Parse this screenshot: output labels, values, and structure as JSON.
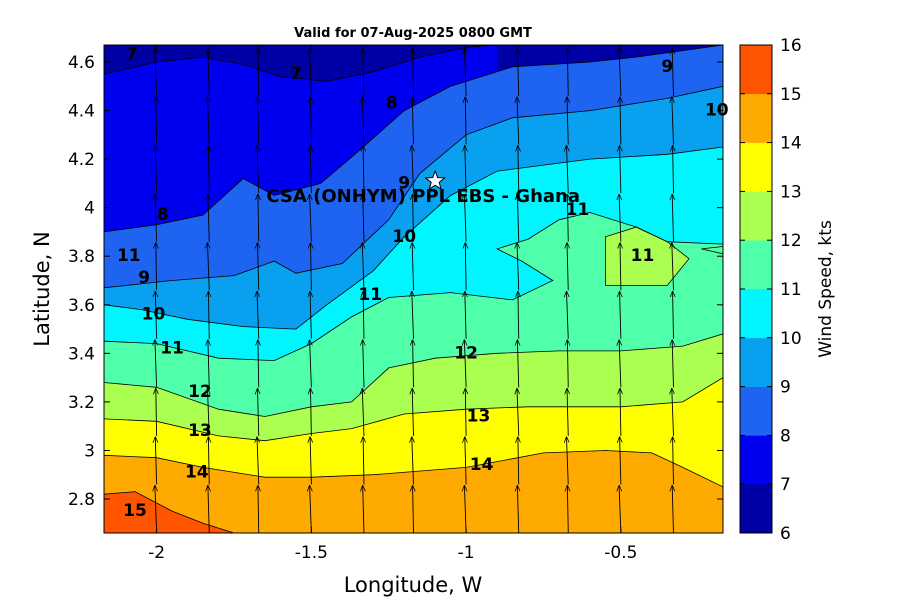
{
  "chart_data": {
    "type": "heatmap",
    "subtype": "filled-contour-with-wind-vectors",
    "title": "Valid for 07-Aug-2025 0800 GMT",
    "xlabel": "Longitude, W",
    "ylabel": "Latitude, N",
    "xlim": [
      -2.17,
      -0.17
    ],
    "ylim": [
      2.66,
      4.67
    ],
    "x_ticks": [
      -2,
      -1.5,
      -1,
      -0.5
    ],
    "x_tick_labels": [
      "-2",
      "-1.5",
      "-1",
      "-0.5"
    ],
    "y_ticks": [
      2.8,
      3.0,
      3.2,
      3.4,
      3.6,
      3.8,
      4.0,
      4.2,
      4.4,
      4.6
    ],
    "y_tick_labels": [
      "2.8",
      "3",
      "3.2",
      "3.4",
      "3.6",
      "3.8",
      "4",
      "4.2",
      "4.4",
      "4.6"
    ],
    "colorbar": {
      "label": "Wind Speed, kts",
      "levels": [
        6,
        7,
        8,
        9,
        10,
        11,
        12,
        13,
        14,
        15,
        16
      ],
      "tick_labels": [
        "6",
        "7",
        "8",
        "9",
        "10",
        "11",
        "12",
        "13",
        "14",
        "15",
        "16"
      ],
      "colors": [
        "#0000a5",
        "#0000f0",
        "#1e64f0",
        "#0aa0f0",
        "#00f5ff",
        "#50ffaa",
        "#aaff50",
        "#ffff00",
        "#ffaa00",
        "#ff5500"
      ]
    },
    "contour_levels": [
      7,
      8,
      9,
      10,
      11,
      12,
      13,
      14,
      15
    ],
    "contours": [
      {
        "level": 7,
        "points": [
          [
            -2.17,
            4.55
          ],
          [
            -2.0,
            4.6
          ],
          [
            -1.85,
            4.62
          ],
          [
            -1.72,
            4.59
          ],
          [
            -1.6,
            4.54
          ],
          [
            -1.45,
            4.52
          ],
          [
            -1.3,
            4.56
          ],
          [
            -1.15,
            4.62
          ],
          [
            -1.0,
            4.66
          ],
          [
            -0.9,
            4.67
          ]
        ]
      },
      {
        "level": 8,
        "points": [
          [
            -2.17,
            3.9
          ],
          [
            -2.0,
            3.93
          ],
          [
            -1.85,
            3.97
          ],
          [
            -1.72,
            4.12
          ],
          [
            -1.62,
            4.05
          ],
          [
            -1.47,
            4.1
          ],
          [
            -1.35,
            4.23
          ],
          [
            -1.2,
            4.4
          ],
          [
            -1.05,
            4.5
          ],
          [
            -0.85,
            4.58
          ],
          [
            -0.6,
            4.6
          ],
          [
            -0.45,
            4.62
          ],
          [
            -0.17,
            4.67
          ]
        ]
      },
      {
        "level": 9,
        "points": [
          [
            -2.17,
            3.67
          ],
          [
            -1.95,
            3.7
          ],
          [
            -1.75,
            3.72
          ],
          [
            -1.62,
            3.78
          ],
          [
            -1.55,
            3.73
          ],
          [
            -1.4,
            3.77
          ],
          [
            -1.25,
            3.95
          ],
          [
            -1.15,
            4.14
          ],
          [
            -1.0,
            4.3
          ],
          [
            -0.85,
            4.37
          ],
          [
            -0.6,
            4.4
          ],
          [
            -0.35,
            4.45
          ],
          [
            -0.17,
            4.5
          ]
        ]
      },
      {
        "level": 10,
        "points": [
          [
            -2.17,
            3.6
          ],
          [
            -2.05,
            3.58
          ],
          [
            -1.9,
            3.54
          ],
          [
            -1.72,
            3.51
          ],
          [
            -1.55,
            3.5
          ],
          [
            -1.45,
            3.6
          ],
          [
            -1.3,
            3.74
          ],
          [
            -1.2,
            3.88
          ],
          [
            -1.05,
            4.05
          ],
          [
            -0.9,
            4.15
          ],
          [
            -0.6,
            4.2
          ],
          [
            -0.35,
            4.22
          ],
          [
            -0.17,
            4.25
          ]
        ]
      },
      {
        "level": 11,
        "points": [
          [
            -2.17,
            3.45
          ],
          [
            -2.0,
            3.44
          ],
          [
            -1.8,
            3.38
          ],
          [
            -1.62,
            3.37
          ],
          [
            -1.5,
            3.44
          ],
          [
            -1.37,
            3.55
          ],
          [
            -1.25,
            3.63
          ],
          [
            -1.05,
            3.65
          ],
          [
            -0.85,
            3.62
          ],
          [
            -0.72,
            3.7
          ],
          [
            -0.82,
            3.78
          ],
          [
            -0.9,
            3.83
          ],
          [
            -0.8,
            3.87
          ],
          [
            -0.7,
            3.95
          ],
          [
            -0.6,
            3.98
          ],
          [
            -0.45,
            3.92
          ],
          [
            -0.35,
            3.86
          ],
          [
            -0.17,
            3.85
          ]
        ]
      },
      {
        "level": 12,
        "points": [
          [
            -2.17,
            3.28
          ],
          [
            -2.0,
            3.26
          ],
          [
            -1.8,
            3.17
          ],
          [
            -1.65,
            3.14
          ],
          [
            -1.5,
            3.18
          ],
          [
            -1.37,
            3.2
          ],
          [
            -1.25,
            3.34
          ],
          [
            -1.1,
            3.38
          ],
          [
            -0.9,
            3.4
          ],
          [
            -0.7,
            3.41
          ],
          [
            -0.5,
            3.41
          ],
          [
            -0.3,
            3.43
          ],
          [
            -0.17,
            3.48
          ]
        ]
      },
      {
        "level": 13,
        "points": [
          [
            -2.17,
            3.13
          ],
          [
            -2.0,
            3.12
          ],
          [
            -1.8,
            3.06
          ],
          [
            -1.65,
            3.04
          ],
          [
            -1.5,
            3.07
          ],
          [
            -1.37,
            3.09
          ],
          [
            -1.2,
            3.15
          ],
          [
            -1.0,
            3.17
          ],
          [
            -0.8,
            3.18
          ],
          [
            -0.5,
            3.18
          ],
          [
            -0.3,
            3.2
          ],
          [
            -0.17,
            3.3
          ]
        ]
      },
      {
        "level": 14,
        "points": [
          [
            -2.17,
            2.98
          ],
          [
            -2.0,
            2.97
          ],
          [
            -1.85,
            2.93
          ],
          [
            -1.65,
            2.89
          ],
          [
            -1.5,
            2.89
          ],
          [
            -1.3,
            2.9
          ],
          [
            -1.0,
            2.93
          ],
          [
            -0.75,
            2.99
          ],
          [
            -0.55,
            3.0
          ],
          [
            -0.4,
            2.99
          ],
          [
            -0.3,
            2.93
          ],
          [
            -0.17,
            2.85
          ]
        ]
      },
      {
        "level": 15,
        "points": [
          [
            -2.17,
            2.82
          ],
          [
            -2.07,
            2.83
          ],
          [
            -1.95,
            2.75
          ],
          [
            -1.85,
            2.7
          ],
          [
            -1.75,
            2.66
          ]
        ]
      }
    ],
    "extra_regions": [
      {
        "level": 12,
        "points": [
          [
            -0.55,
            3.8
          ],
          [
            -0.55,
            3.88
          ],
          [
            -0.45,
            3.92
          ],
          [
            -0.35,
            3.86
          ],
          [
            -0.28,
            3.79
          ],
          [
            -0.35,
            3.68
          ],
          [
            -0.55,
            3.68
          ]
        ]
      },
      {
        "level": 11,
        "points": [
          [
            -0.17,
            3.84
          ],
          [
            -0.24,
            3.83
          ],
          [
            -0.17,
            3.81
          ]
        ]
      }
    ],
    "contour_labels": [
      {
        "text": "7",
        "x": -2.08,
        "y": 4.63
      },
      {
        "text": "7",
        "x": -1.55,
        "y": 4.55
      },
      {
        "text": "8",
        "x": -1.24,
        "y": 4.43
      },
      {
        "text": "9",
        "x": -0.35,
        "y": 4.58
      },
      {
        "text": "10",
        "x": -0.19,
        "y": 4.4
      },
      {
        "text": "8",
        "x": -1.98,
        "y": 3.97
      },
      {
        "text": "9",
        "x": -2.04,
        "y": 3.71
      },
      {
        "text": "9",
        "x": -1.2,
        "y": 4.1
      },
      {
        "text": "10",
        "x": -1.2,
        "y": 3.88
      },
      {
        "text": "10",
        "x": -2.01,
        "y": 3.56
      },
      {
        "text": "11",
        "x": -2.09,
        "y": 3.8
      },
      {
        "text": "11",
        "x": -1.31,
        "y": 3.64
      },
      {
        "text": "11",
        "x": -0.64,
        "y": 3.99
      },
      {
        "text": "11",
        "x": -0.43,
        "y": 3.8
      },
      {
        "text": "11",
        "x": -1.95,
        "y": 3.42
      },
      {
        "text": "12",
        "x": -1.86,
        "y": 3.24
      },
      {
        "text": "12",
        "x": -1.0,
        "y": 3.4
      },
      {
        "text": "13",
        "x": -1.86,
        "y": 3.08
      },
      {
        "text": "13",
        "x": -0.96,
        "y": 3.14
      },
      {
        "text": "14",
        "x": -1.87,
        "y": 2.91
      },
      {
        "text": "14",
        "x": -0.95,
        "y": 2.94
      },
      {
        "text": "15",
        "x": -2.07,
        "y": 2.75
      }
    ],
    "site_marker": {
      "label": "CSA (ONHYM) PPL EBS  - Ghana",
      "x": -1.1,
      "y": 4.11,
      "marker": "star-icon"
    },
    "wind_vectors": {
      "description": "arrows pointing roughly north-northeast",
      "x": [
        -2.0,
        -1.83,
        -1.67,
        -1.5,
        -1.33,
        -1.17,
        -1.0,
        -0.83,
        -0.67,
        -0.5,
        -0.33
      ],
      "y": [
        2.66,
        2.86,
        3.06,
        3.26,
        3.46,
        3.66,
        3.86,
        4.06,
        4.26,
        4.46,
        4.66
      ],
      "u_kts": -0.3,
      "v_kts": 11
    }
  }
}
